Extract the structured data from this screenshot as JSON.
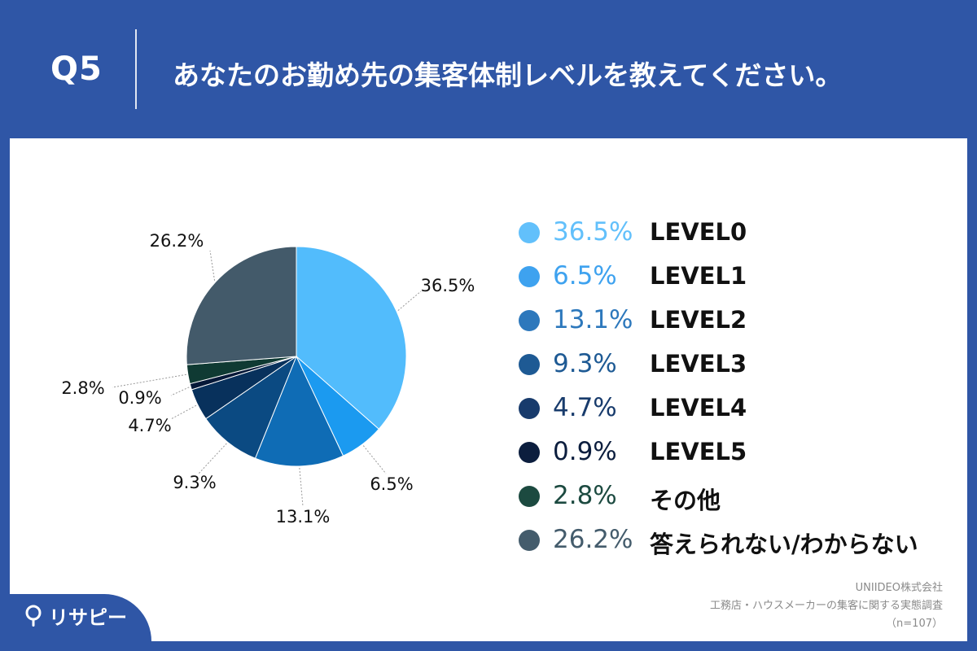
{
  "header": {
    "question_label": "Q5",
    "question_text": "あなたのお勤め先の集客体制レベルを教えてください。"
  },
  "chart_data": {
    "type": "pie",
    "title": "",
    "unit": "%",
    "slices": [
      {
        "label": "LEVEL0",
        "value": 36.5,
        "display": "36.5%",
        "color": "#52bcfc"
      },
      {
        "label": "LEVEL1",
        "value": 6.5,
        "display": "6.5%",
        "color": "#1b9af0"
      },
      {
        "label": "LEVEL2",
        "value": 13.1,
        "display": "13.1%",
        "color": "#0f6cb5"
      },
      {
        "label": "LEVEL3",
        "value": 9.3,
        "display": "9.3%",
        "color": "#0b4a82"
      },
      {
        "label": "LEVEL4",
        "value": 4.7,
        "display": "4.7%",
        "color": "#08315c"
      },
      {
        "label": "LEVEL5",
        "value": 0.9,
        "display": "0.9%",
        "color": "#051838"
      },
      {
        "label": "その他",
        "value": 2.8,
        "display": "2.8%",
        "color": "#0f3a33"
      },
      {
        "label": "答えられない/わからない",
        "value": 26.2,
        "display": "26.2%",
        "color": "#435a6a"
      }
    ],
    "legend_position": "right"
  },
  "legend_colors": [
    "#62c0fb",
    "#3ea2ef",
    "#2d78bc",
    "#1e5a94",
    "#183b6c",
    "#0c1e3e",
    "#1c4a40",
    "#445c6c"
  ],
  "source": {
    "company": "UNIIDEO株式会社",
    "survey": "工務店・ハウスメーカーの集客に関する実態調査",
    "sample": "（n=107）"
  },
  "brand": {
    "name": "リサピー",
    "icon": "pin-logo-icon"
  }
}
